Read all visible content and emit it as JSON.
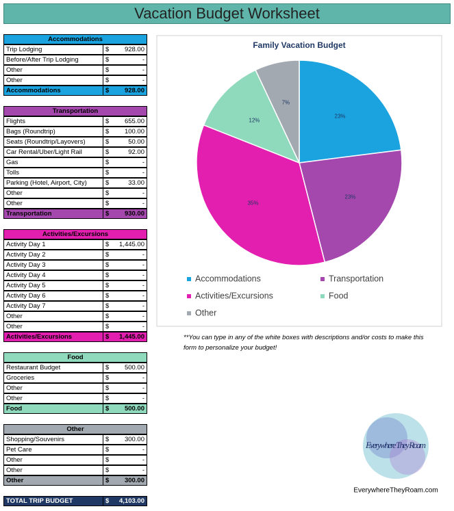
{
  "title": "Vacation Budget Worksheet",
  "currency": "$",
  "sections": [
    {
      "title": "Accommodations",
      "color": "#1ba3e0",
      "rows": [
        {
          "label": "Trip Lodging",
          "amount": "928.00"
        },
        {
          "label": "Before/After Trip Lodging",
          "amount": "-"
        },
        {
          "label": "Other",
          "amount": "-"
        },
        {
          "label": "Other",
          "amount": "-"
        }
      ],
      "total": {
        "label": "Accommodations",
        "amount": "928.00"
      }
    },
    {
      "title": "Transportation",
      "color": "#a448ad",
      "rows": [
        {
          "label": "Flights",
          "amount": "655.00"
        },
        {
          "label": "Bags (Roundtrip)",
          "amount": "100.00"
        },
        {
          "label": "Seats (Roundtrip/Layovers)",
          "amount": "50.00"
        },
        {
          "label": "Car Rental/Uber/Light Rail",
          "amount": "92.00"
        },
        {
          "label": "Gas",
          "amount": "-"
        },
        {
          "label": "Tolls",
          "amount": "-"
        },
        {
          "label": "Parking (Hotel, Airport, City)",
          "amount": "33.00"
        },
        {
          "label": "Other",
          "amount": "-"
        },
        {
          "label": "Other",
          "amount": "-"
        }
      ],
      "total": {
        "label": "Transportation",
        "amount": "930.00"
      }
    },
    {
      "title": "Activities/Excursions",
      "color": "#e21fae",
      "rows": [
        {
          "label": "Activity Day 1",
          "amount": "1,445.00"
        },
        {
          "label": "Activity Day 2",
          "amount": "-"
        },
        {
          "label": "Activity Day 3",
          "amount": "-"
        },
        {
          "label": "Activity Day 4",
          "amount": "-"
        },
        {
          "label": "Activity Day 5",
          "amount": "-"
        },
        {
          "label": "Activity Day 6",
          "amount": "-"
        },
        {
          "label": "Activity Day 7",
          "amount": "-"
        },
        {
          "label": "Other",
          "amount": "-"
        },
        {
          "label": "Other",
          "amount": "-"
        }
      ],
      "total": {
        "label": "Activities/Excursions",
        "amount": "1,445.00"
      }
    },
    {
      "title": "Food",
      "color": "#8fd9bd",
      "rows": [
        {
          "label": "Restaurant Budget",
          "amount": "500.00"
        },
        {
          "label": "Groceries",
          "amount": "-"
        },
        {
          "label": "Other",
          "amount": "-"
        },
        {
          "label": "Other",
          "amount": "-"
        }
      ],
      "total": {
        "label": "Food",
        "amount": "500.00"
      }
    },
    {
      "title": "Other",
      "color": "#a2a9b0",
      "rows": [
        {
          "label": "Shopping/Souvenirs",
          "amount": "300.00"
        },
        {
          "label": "Pet Care",
          "amount": "-"
        },
        {
          "label": "Other",
          "amount": "-"
        },
        {
          "label": "Other",
          "amount": "-"
        }
      ],
      "total": {
        "label": "Other",
        "amount": "300.00"
      }
    }
  ],
  "grand_total": {
    "label": "TOTAL TRIP BUDGET",
    "amount": "4,103.00"
  },
  "chart_data": {
    "type": "pie",
    "title": "Family Vacation Budget",
    "categories": [
      "Accommodations",
      "Transportation",
      "Activities/Excursions",
      "Food",
      "Other"
    ],
    "values": [
      23,
      23,
      35,
      12,
      7
    ],
    "value_labels": [
      "23%",
      "23%",
      "35%",
      "12%",
      "7%"
    ],
    "colors": [
      "#1ba3e0",
      "#a448ad",
      "#e21fae",
      "#8fd9bd",
      "#a2a9b0"
    ]
  },
  "note": "**You can type in any of the white boxes with descriptions and/or costs to make this form to personalize your budget!",
  "logo": {
    "name": "Everywhere They Roam",
    "url": "EverywhereTheyRoam.com"
  }
}
